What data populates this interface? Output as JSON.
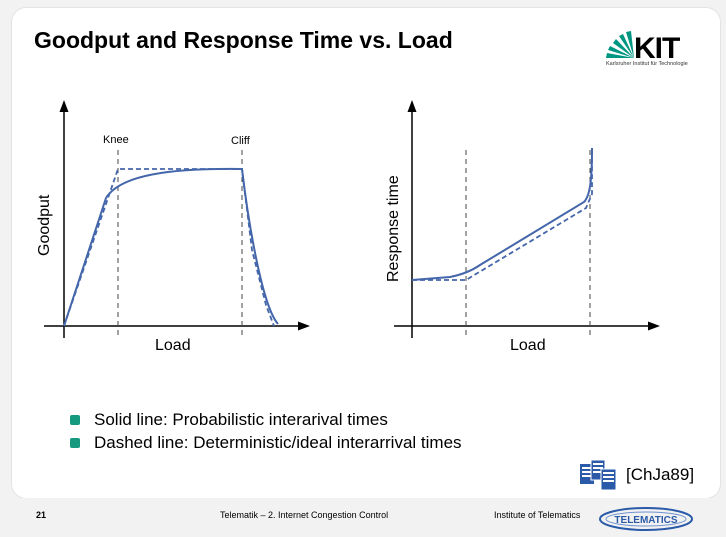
{
  "slide": {
    "title": "Goodput and Response Time vs. Load",
    "logo": {
      "text": "KIT",
      "subtitle": "Karlsruher Institut für Technologie",
      "icon": "kit-fan-logo"
    }
  },
  "chart_data": [
    {
      "type": "line",
      "xlabel": "Load",
      "ylabel": "Goodput",
      "annotations": [
        "Knee",
        "Cliff"
      ],
      "series": [
        {
          "name": "Solid line",
          "style": "solid"
        },
        {
          "name": "Dashed line",
          "style": "dashed"
        }
      ],
      "colors": {
        "line": "#4466aa",
        "axis": "#000000"
      }
    },
    {
      "type": "line",
      "xlabel": "Load",
      "ylabel": "Response time",
      "series": [
        {
          "name": "Solid line",
          "style": "solid"
        },
        {
          "name": "Dashed line",
          "style": "dashed"
        }
      ],
      "colors": {
        "line": "#4466aa",
        "axis": "#000000"
      }
    }
  ],
  "bullets": [
    "Solid line: Probabilistic interarival times",
    "Dashed line: Deterministic/ideal interarrival times"
  ],
  "citation": {
    "label": "[ChJa89]",
    "icon": "documents-icon"
  },
  "footer": {
    "page_number": "21",
    "course": "Telematik – 2. Internet Congestion Control",
    "institute": "Institute of Telematics",
    "logo_text": "TELEMATICS"
  },
  "colors": {
    "accent": "#159a80",
    "curve": "#4466aa",
    "kit_green": "#009682"
  }
}
